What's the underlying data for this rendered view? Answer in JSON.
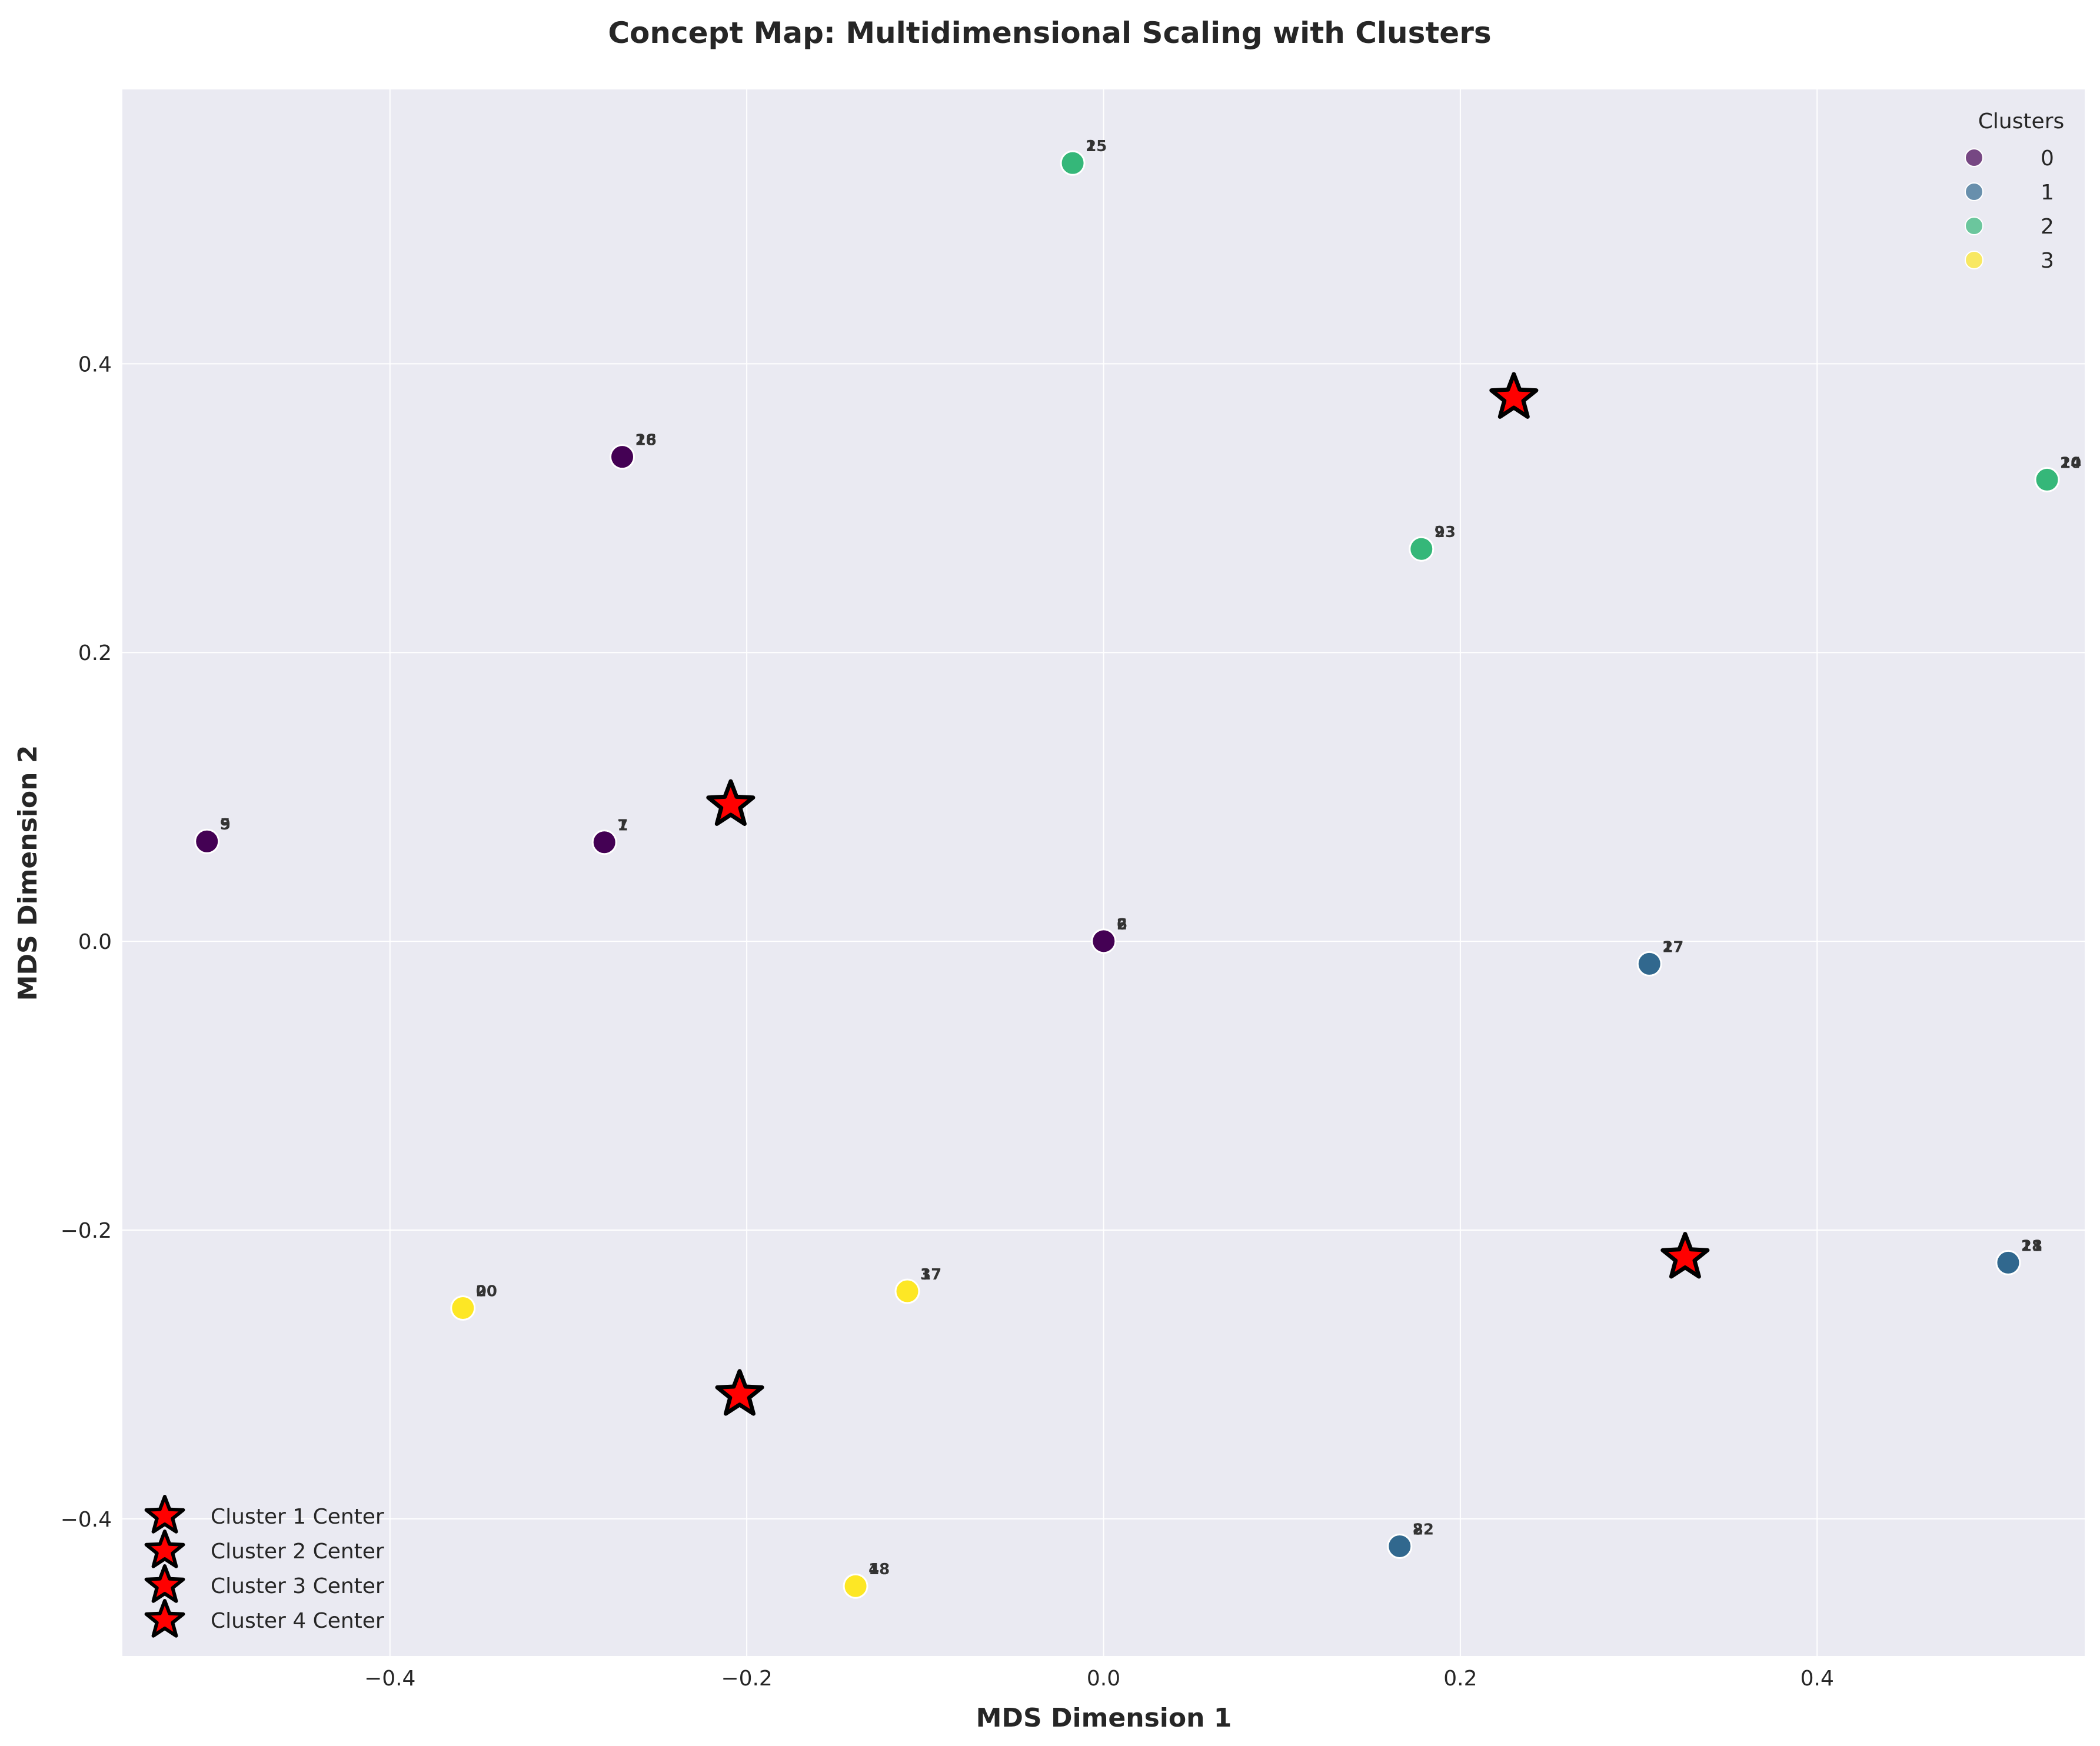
{
  "chart_data": {
    "type": "scatter",
    "title": "Concept Map: Multidimensional Scaling with Clusters",
    "xlabel": "MDS Dimension 1",
    "ylabel": "MDS Dimension 2",
    "xlim": [
      -0.55,
      0.55
    ],
    "ylim": [
      -0.495,
      0.59
    ],
    "xticks": [
      -0.4,
      -0.2,
      0.0,
      0.2,
      0.4
    ],
    "yticks": [
      -0.4,
      -0.2,
      0.0,
      0.2,
      0.4
    ],
    "xtick_labels": [
      "−0.4",
      "−0.2",
      "0.0",
      "0.2",
      "0.4"
    ],
    "ytick_labels": [
      "−0.4",
      "−0.2",
      "0.0",
      "0.2",
      "0.4"
    ],
    "grid": true,
    "background": "#eaeaf2",
    "cluster_colors": [
      "#440154",
      "#31688e",
      "#35b779",
      "#fde725"
    ],
    "points": [
      {
        "x": -0.5026,
        "y": 0.0692,
        "cluster": 0,
        "labels": [
          "5",
          "9"
        ]
      },
      {
        "x": -0.2798,
        "y": 0.0686,
        "cluster": 0,
        "labels": [
          "7",
          "1"
        ]
      },
      {
        "x": -0.2698,
        "y": 0.3355,
        "cluster": 0,
        "labels": [
          "16",
          "28"
        ]
      },
      {
        "x": 0.0001,
        "y": 0.0001,
        "cluster": 0,
        "labels": [
          "2",
          "6"
        ]
      },
      {
        "x": -0.0173,
        "y": 0.539,
        "cluster": 2,
        "labels": [
          "1",
          "25"
        ]
      },
      {
        "x": 0.1782,
        "y": 0.2717,
        "cluster": 2,
        "labels": [
          "9",
          "23"
        ]
      },
      {
        "x": 0.5289,
        "y": 0.3197,
        "cluster": 2,
        "labels": [
          "10",
          "24"
        ]
      },
      {
        "x": 0.306,
        "y": -0.0156,
        "cluster": 1,
        "labels": [
          "2",
          "17"
        ]
      },
      {
        "x": 0.5071,
        "y": -0.2226,
        "cluster": 1,
        "labels": [
          "28",
          "11"
        ]
      },
      {
        "x": 0.166,
        "y": -0.419,
        "cluster": 1,
        "labels": [
          "8",
          "22"
        ]
      },
      {
        "x": -0.3591,
        "y": -0.254,
        "cluster": 3,
        "labels": [
          "0",
          "20"
        ]
      },
      {
        "x": -0.11,
        "y": -0.2424,
        "cluster": 3,
        "labels": [
          "3",
          "17"
        ]
      },
      {
        "x": -0.139,
        "y": -0.4466,
        "cluster": 3,
        "labels": [
          "4",
          "18"
        ]
      }
    ],
    "centers": [
      {
        "x": -0.209,
        "y": 0.0945
      },
      {
        "x": 0.23,
        "y": 0.3765
      },
      {
        "x": 0.326,
        "y": -0.219
      },
      {
        "x": -0.204,
        "y": -0.314
      }
    ],
    "center_color": "#ff0000",
    "cluster_legend": {
      "title": "Clusters",
      "position": "top-right",
      "entries": [
        "0",
        "1",
        "2",
        "3"
      ]
    },
    "center_legend": {
      "position": "bottom-left",
      "entries": [
        "Cluster 1 Center",
        "Cluster 2 Center",
        "Cluster 3 Center",
        "Cluster 4 Center"
      ]
    }
  }
}
